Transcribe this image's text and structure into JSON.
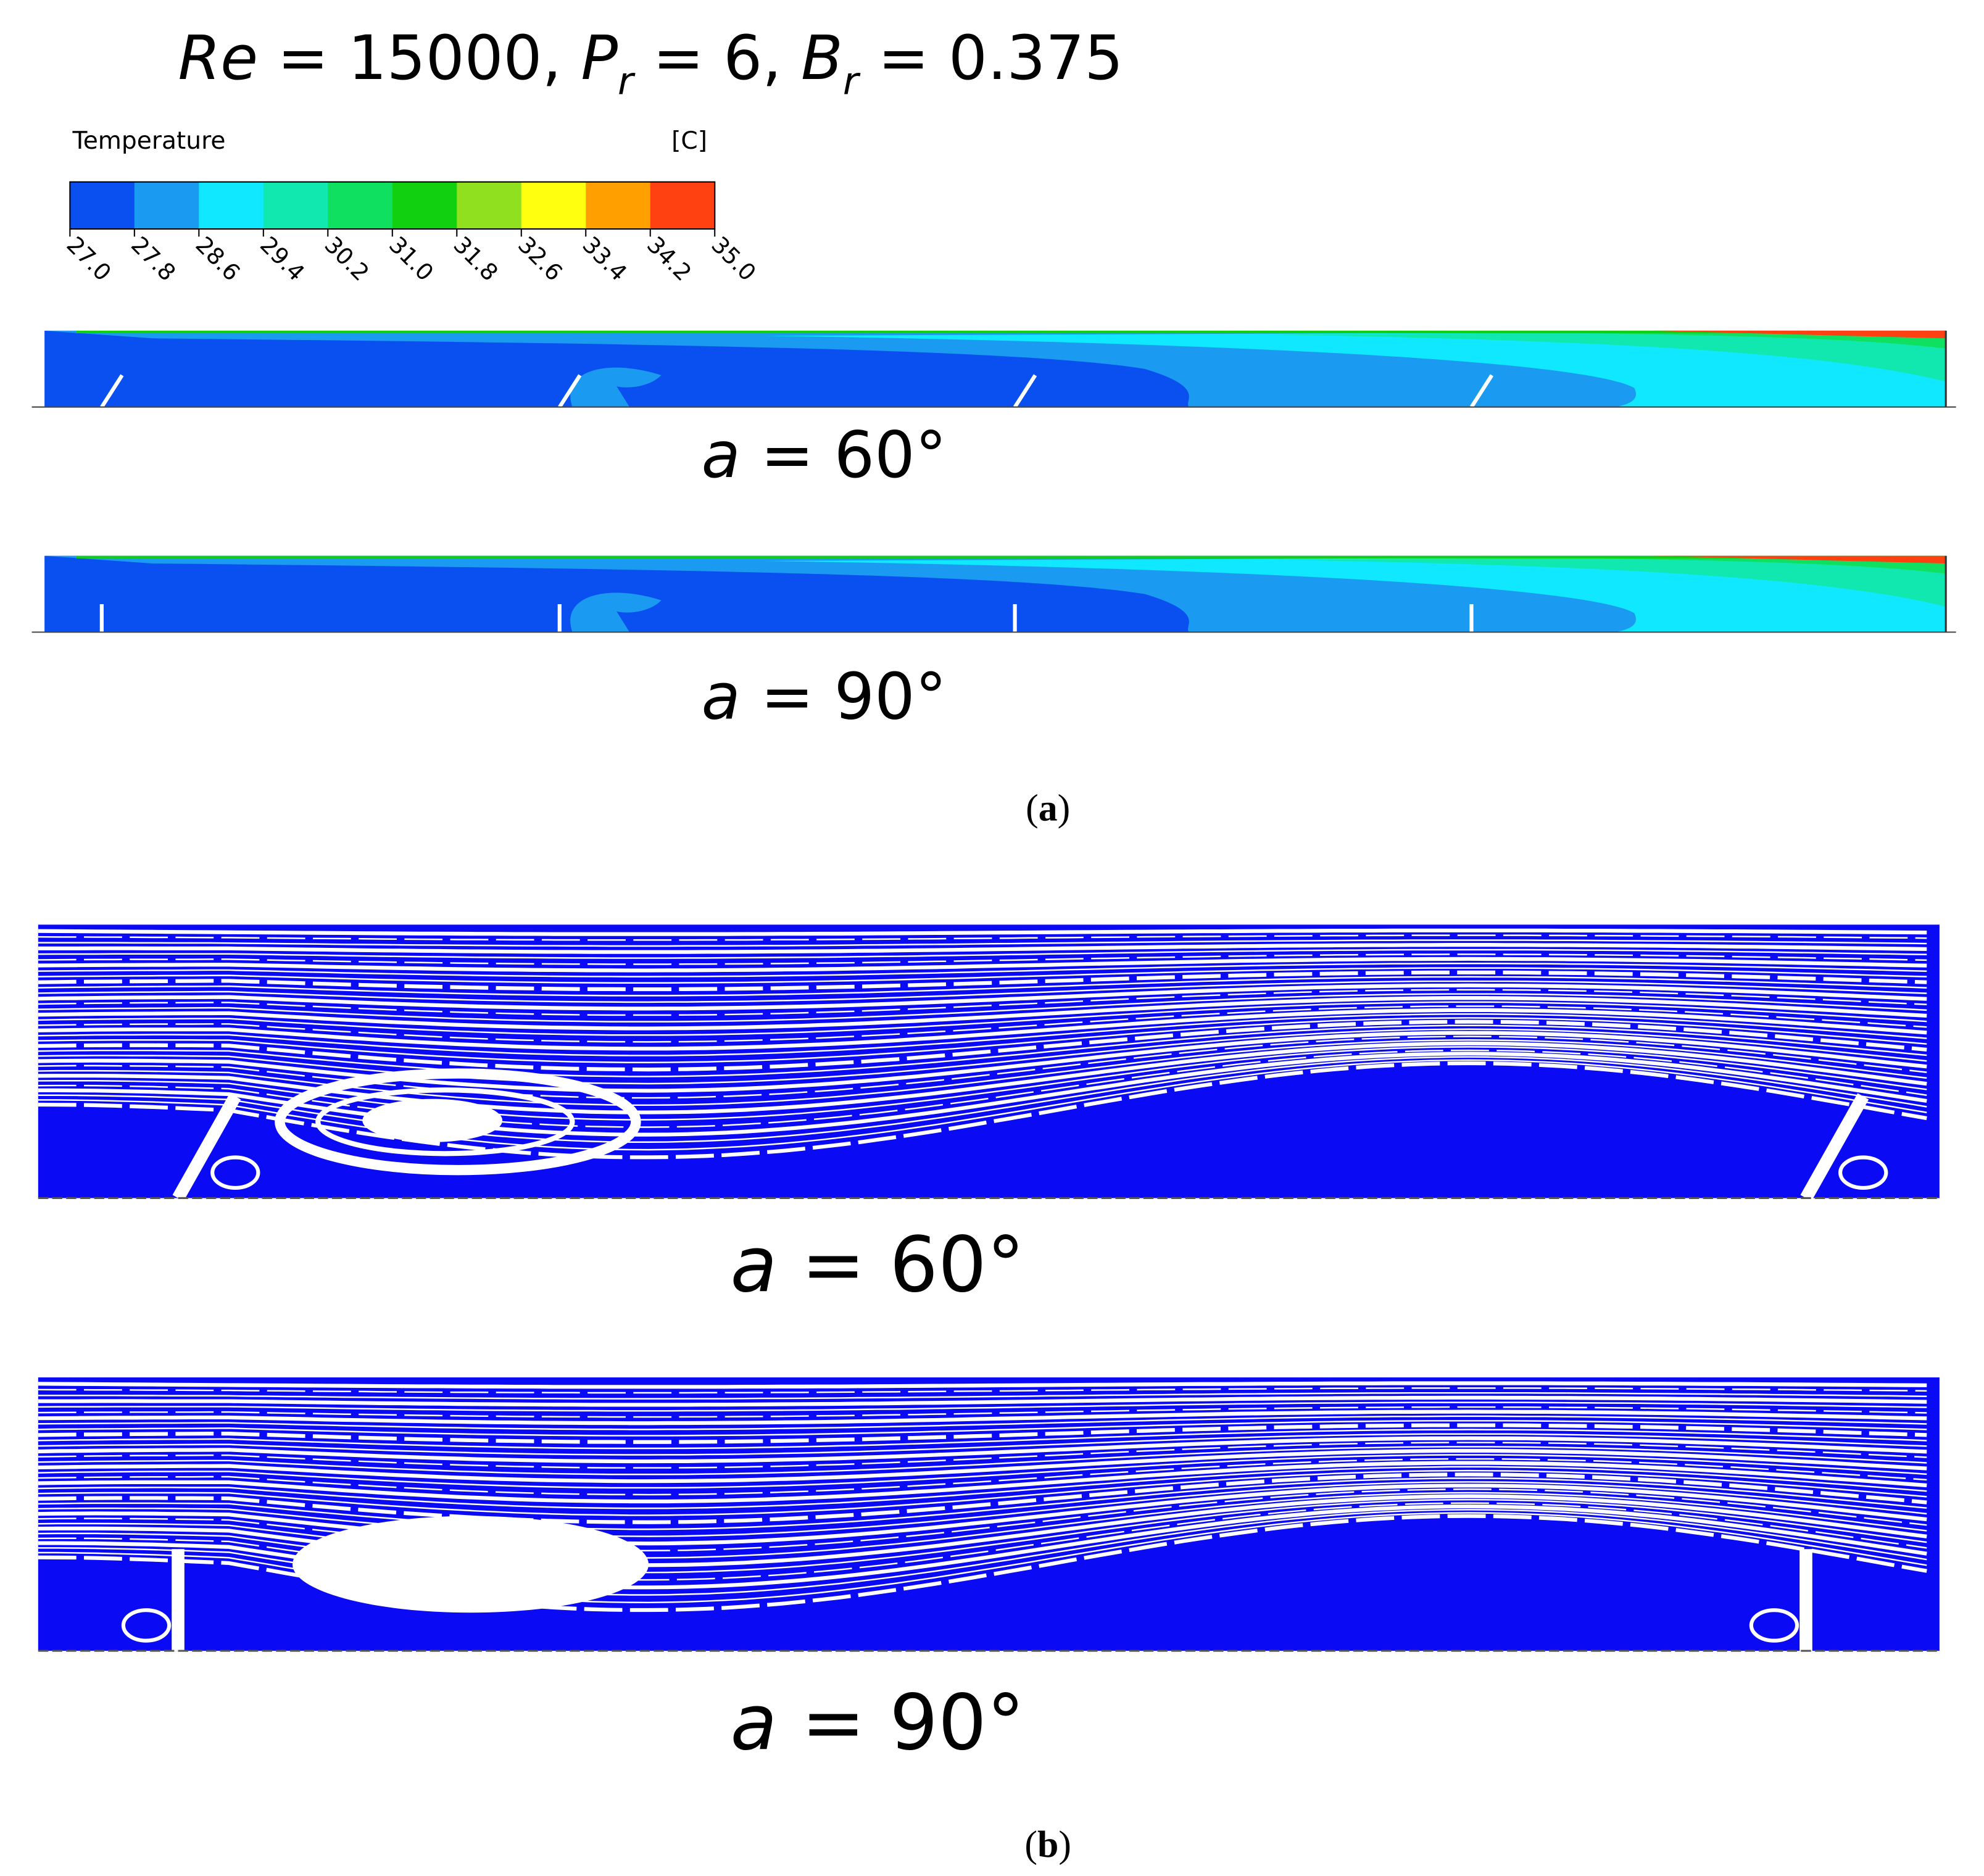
{
  "header": {
    "title_parts": [
      "Re",
      " = 15000, ",
      "P",
      "r",
      " = 6, ",
      "B",
      "r",
      " = 0.375"
    ]
  },
  "colorbar": {
    "title": "Temperature",
    "unit": "[C]",
    "ticks": [
      "27.0",
      "27.8",
      "28.6",
      "29.4",
      "30.2",
      "31.0",
      "31.8",
      "32.6",
      "33.4",
      "34.2",
      "35.0"
    ],
    "colors": [
      "#0a50f0",
      "#1a9af0",
      "#10e8ff",
      "#10e8b0",
      "#10e060",
      "#10d010",
      "#90e020",
      "#ffff10",
      "#ffa000",
      "#ff4010"
    ]
  },
  "panels": {
    "a": {
      "label_open": "(",
      "label_letter": "a",
      "label_close": ")",
      "rows": [
        {
          "var": "a",
          "rest": " = 60°"
        },
        {
          "var": "a",
          "rest": " = 90°"
        }
      ]
    },
    "b": {
      "label_open": "(",
      "label_letter": "b",
      "label_close": ")",
      "rows": [
        {
          "var": "a",
          "rest": " = 60°"
        },
        {
          "var": "a",
          "rest": " = 90°"
        }
      ]
    }
  }
}
